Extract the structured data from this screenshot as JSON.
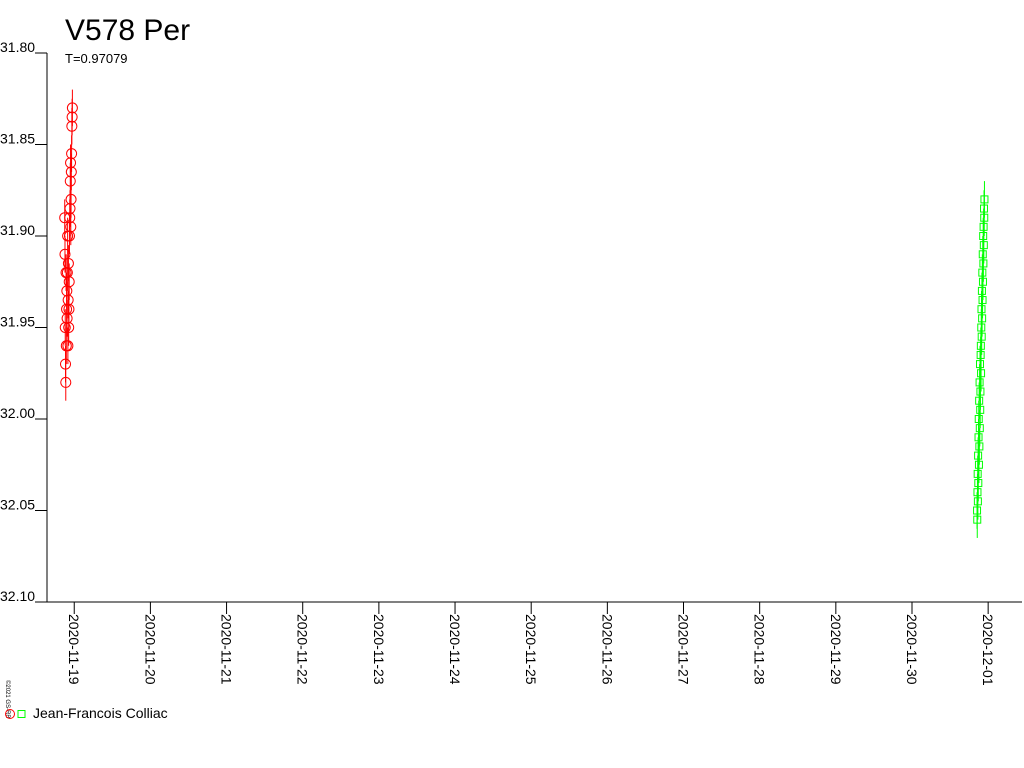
{
  "chart_data": {
    "type": "scatter",
    "title": "V578 Per",
    "subtitle": "T=0.97079",
    "credit": "©2021 GS-RB",
    "legend_label": "Jean-Francois Colliac",
    "inverted_y": true,
    "error": 0.01,
    "xlim": [
      "2020-11-18T15:25",
      "2020-12-01T10:40"
    ],
    "xticks": [
      "2020-11-19",
      "2020-11-20",
      "2020-11-21",
      "2020-11-22",
      "2020-11-23",
      "2020-11-24",
      "2020-11-25",
      "2020-11-26",
      "2020-11-27",
      "2020-11-28",
      "2020-11-29",
      "2020-11-30",
      "2020-12-01"
    ],
    "ylim": [
      31.8,
      32.1
    ],
    "yticks": [
      {
        "value": 31.8,
        "label": "31.80"
      },
      {
        "value": 31.85,
        "label": "31.85"
      },
      {
        "value": 31.9,
        "label": "31.90"
      },
      {
        "value": 31.95,
        "label": "31.95"
      },
      {
        "value": 32.0,
        "label": "32.00"
      },
      {
        "value": 32.05,
        "label": "32.05"
      },
      {
        "value": 32.1,
        "label": "32.10"
      }
    ],
    "series": [
      {
        "color": "#ff0000",
        "marker": "circle",
        "x": [
          "2020-11-18T21:00",
          "2020-11-18T21:05",
          "2020-11-18T21:10",
          "2020-11-18T21:15",
          "2020-11-18T21:20",
          "2020-11-18T21:25",
          "2020-11-18T21:30",
          "2020-11-18T21:35",
          "2020-11-18T21:40",
          "2020-11-18T21:45",
          "2020-11-18T21:50",
          "2020-11-18T21:55",
          "2020-11-18T22:00",
          "2020-11-18T22:05",
          "2020-11-18T22:10",
          "2020-11-18T22:15",
          "2020-11-18T22:20",
          "2020-11-18T22:25",
          "2020-11-18T22:30",
          "2020-11-18T22:35",
          "2020-11-18T22:40",
          "2020-11-18T22:45",
          "2020-11-18T22:50",
          "2020-11-18T22:55",
          "2020-11-18T23:00",
          "2020-11-18T23:05",
          "2020-11-18T23:10",
          "2020-11-18T23:15",
          "2020-11-18T23:20",
          "2020-11-18T23:25"
        ],
        "values": [
          31.89,
          31.91,
          31.95,
          31.97,
          31.98,
          31.92,
          31.96,
          31.94,
          31.93,
          31.945,
          31.92,
          31.9,
          31.96,
          31.935,
          31.915,
          31.95,
          31.94,
          31.925,
          31.9,
          31.89,
          31.885,
          31.87,
          31.86,
          31.895,
          31.88,
          31.865,
          31.855,
          31.84,
          31.835,
          31.83
        ]
      },
      {
        "color": "#00ff00",
        "marker": "square",
        "x": [
          "2020-11-30T20:30",
          "2020-11-30T20:34",
          "2020-11-30T20:38",
          "2020-11-30T20:42",
          "2020-11-30T20:46",
          "2020-11-30T20:50",
          "2020-11-30T20:54",
          "2020-11-30T20:58",
          "2020-11-30T21:02",
          "2020-11-30T21:06",
          "2020-11-30T21:10",
          "2020-11-30T21:14",
          "2020-11-30T21:18",
          "2020-11-30T21:22",
          "2020-11-30T21:26",
          "2020-11-30T21:30",
          "2020-11-30T21:34",
          "2020-11-30T21:38",
          "2020-11-30T21:42",
          "2020-11-30T21:46",
          "2020-11-30T21:50",
          "2020-11-30T21:54",
          "2020-11-30T21:58",
          "2020-11-30T22:02",
          "2020-11-30T22:06",
          "2020-11-30T22:10",
          "2020-11-30T22:14",
          "2020-11-30T22:18",
          "2020-11-30T22:22",
          "2020-11-30T22:26",
          "2020-11-30T22:30",
          "2020-11-30T22:34",
          "2020-11-30T22:38",
          "2020-11-30T22:42",
          "2020-11-30T22:46",
          "2020-11-30T22:50"
        ],
        "values": [
          32.05,
          32.055,
          32.04,
          32.03,
          32.045,
          32.02,
          32.035,
          32.01,
          32.0,
          32.025,
          31.99,
          32.015,
          31.98,
          32.005,
          31.97,
          31.995,
          31.985,
          31.965,
          31.96,
          31.975,
          31.95,
          31.94,
          31.955,
          31.93,
          31.945,
          31.92,
          31.935,
          31.91,
          31.925,
          31.9,
          31.915,
          31.895,
          31.905,
          31.885,
          31.89,
          31.88
        ]
      }
    ]
  }
}
